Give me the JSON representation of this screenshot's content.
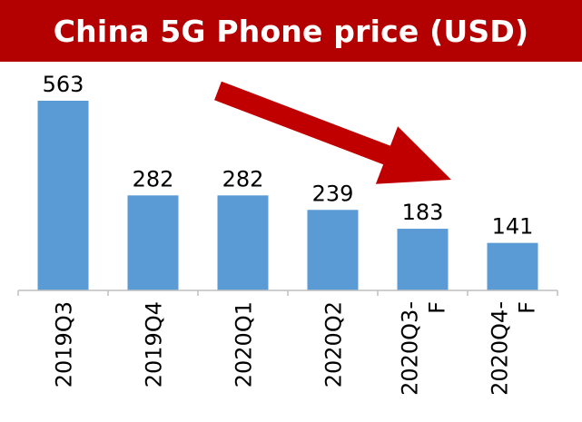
{
  "title": "China 5G Phone price (USD)",
  "colors": {
    "banner": "#b30000",
    "bar": "#5b9bd5",
    "arrow": "#c00000",
    "axis": "#bfbfbf"
  },
  "chart_data": {
    "type": "bar",
    "title": "China 5G Phone price (USD)",
    "categories": [
      [
        "2019Q3"
      ],
      [
        "2019Q4"
      ],
      [
        "2020Q1"
      ],
      [
        "2020Q2"
      ],
      [
        "2020Q3-",
        "F"
      ],
      [
        "2020Q4-",
        "F"
      ]
    ],
    "values": [
      563,
      282,
      282,
      239,
      183,
      141
    ],
    "ylim": [
      0,
      600
    ],
    "grid": false,
    "legend": "none",
    "annotations": [
      "downward trend arrow"
    ]
  }
}
